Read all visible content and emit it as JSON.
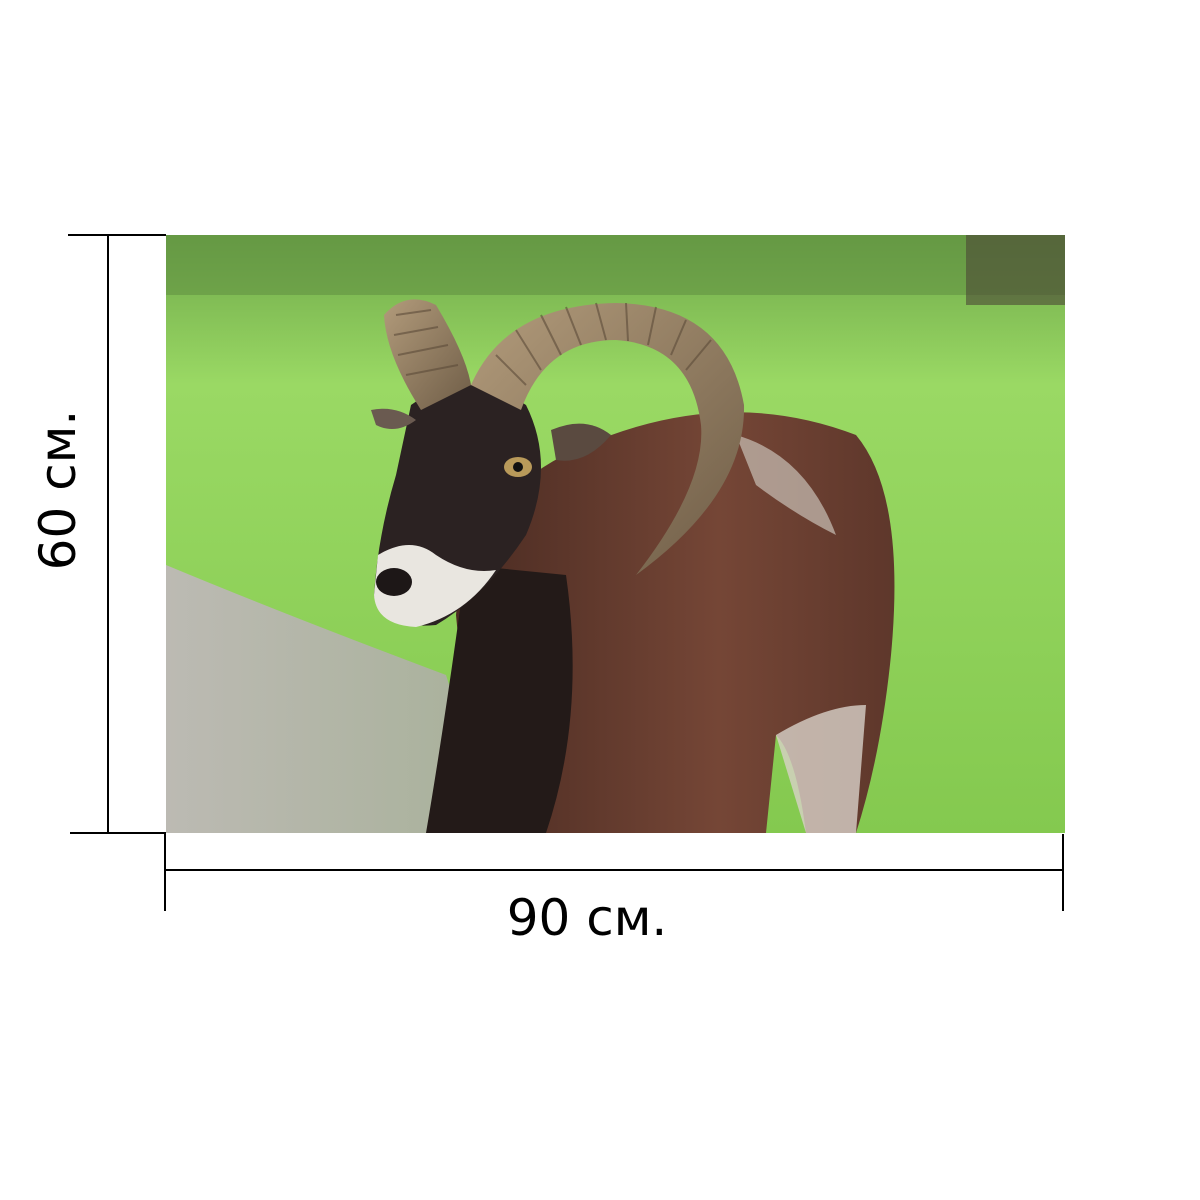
{
  "dimensions": {
    "width_label": "90 см.",
    "height_label": "60 см."
  },
  "photo": {
    "subject": "ram-photo",
    "colors": {
      "grass": "#8fd35a",
      "path": "#b9b6ae",
      "fur": "#6a3f2f",
      "horn": "#9a8466"
    }
  }
}
